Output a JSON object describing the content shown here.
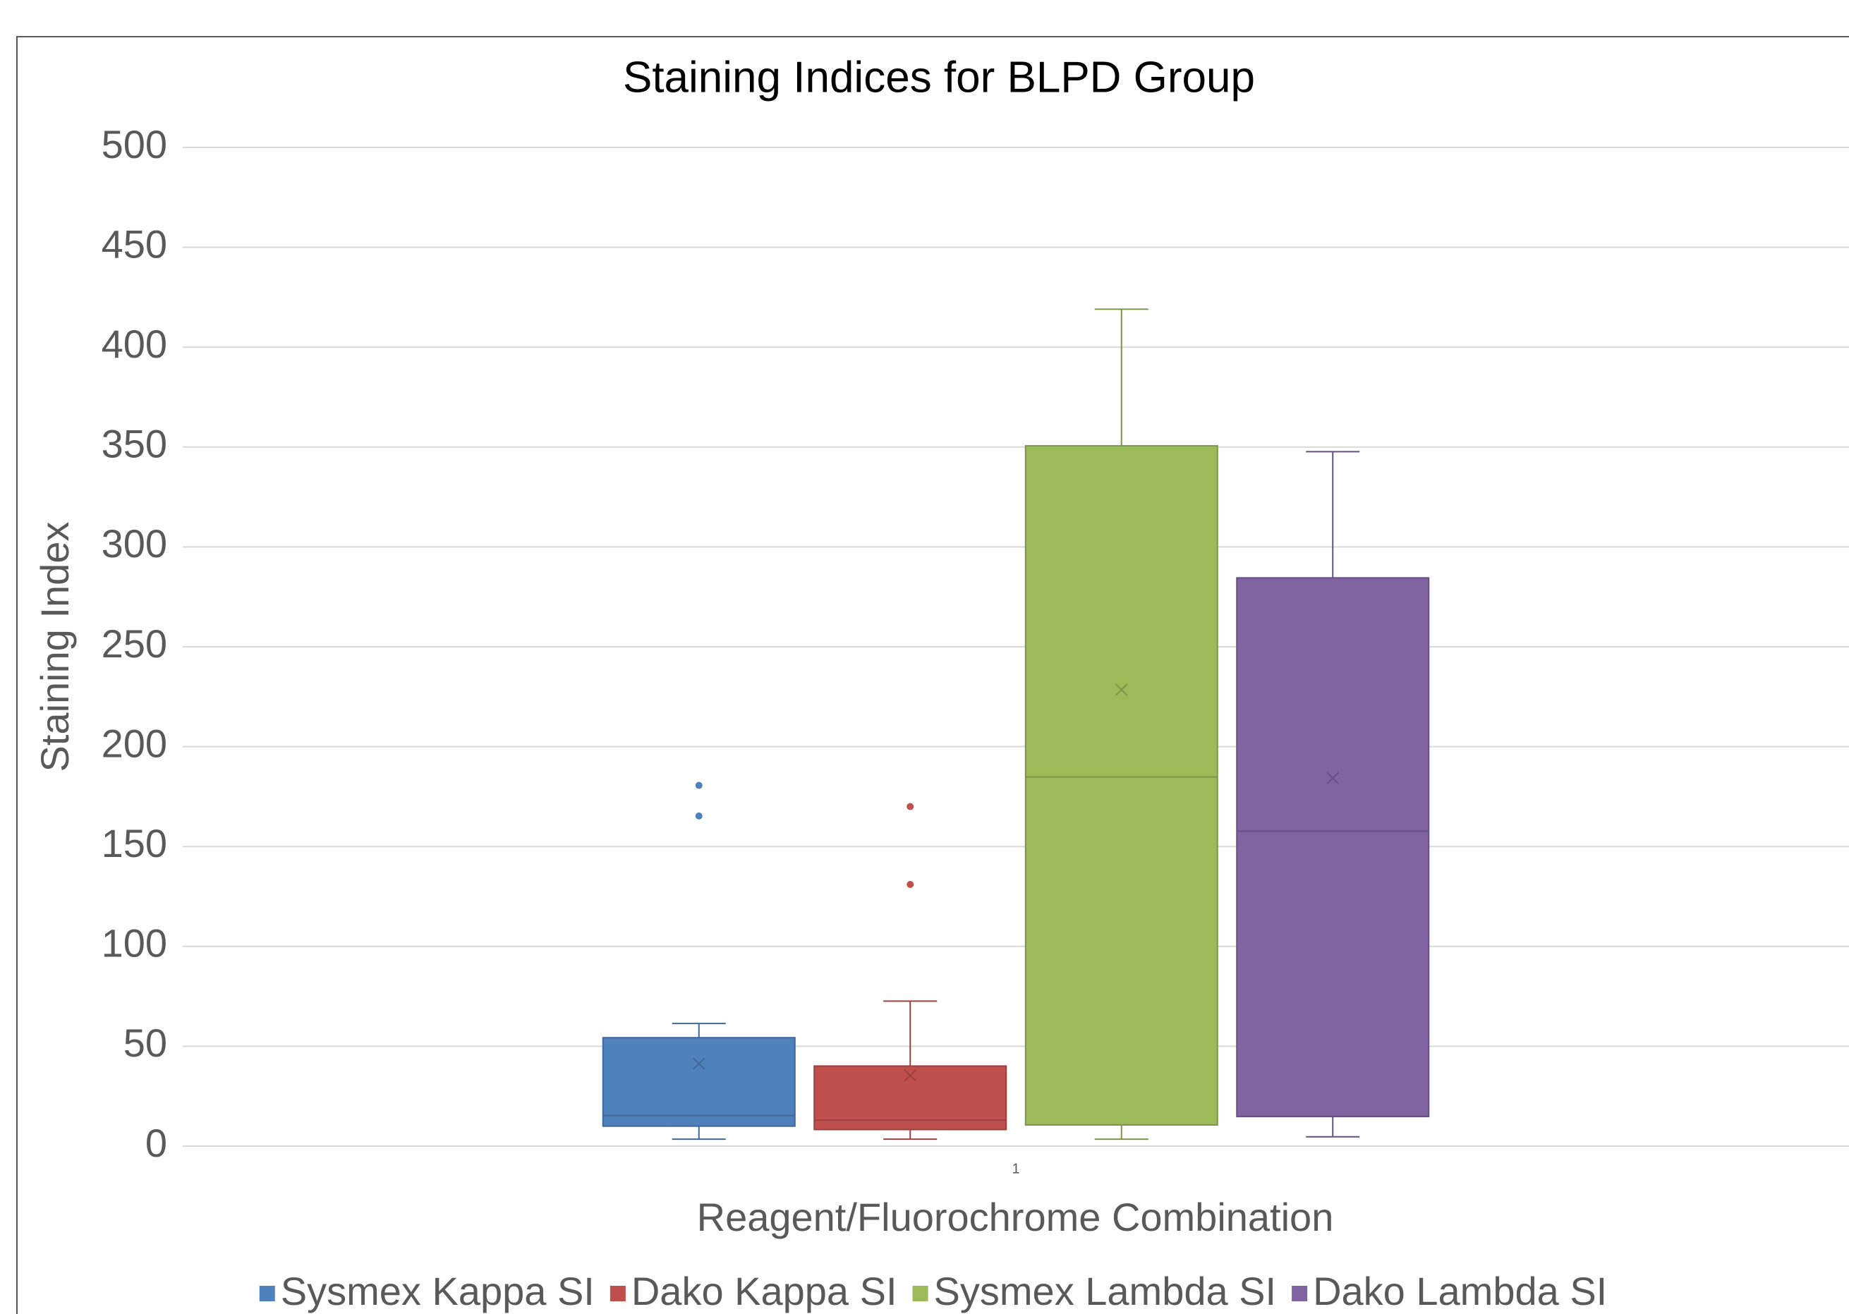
{
  "chart_data": {
    "type": "box",
    "title": "Staining Indices for BLPD Group",
    "x_label": "Reagent/Fluorochrome Combination",
    "y_label": "Staining Index",
    "categories": [
      "1"
    ],
    "ylim": [
      0,
      500
    ],
    "yticks": [
      0,
      50,
      100,
      150,
      200,
      250,
      300,
      350,
      400,
      450,
      500
    ],
    "grid": true,
    "legend": "bottom",
    "series": [
      {
        "name": "Sysmex Kappa SI",
        "color": "#4f81bd",
        "min": 3.5,
        "q1": 10,
        "median": 15.3,
        "q3": 54.3,
        "max": 61.4,
        "mean": 41.3,
        "outliers": [
          180.6,
          165.3
        ]
      },
      {
        "name": "Dako Kappa SI",
        "color": "#c0504d",
        "min": 3.5,
        "q1": 8.3,
        "median": 13,
        "q3": 40.1,
        "max": 72.6,
        "mean": 35.4,
        "outliers": [
          170,
          131
        ]
      },
      {
        "name": "Sysmex Lambda SI",
        "color": "#9bbb59",
        "min": 3.5,
        "q1": 10.6,
        "median": 184.8,
        "q3": 350.6,
        "max": 419,
        "mean": 228.5,
        "outliers": []
      },
      {
        "name": "Dako Lambda SI",
        "color": "#8064a2",
        "min": 4.7,
        "q1": 14.8,
        "median": 157.6,
        "q3": 284.5,
        "max": 347.7,
        "mean": 184.2,
        "outliers": []
      }
    ]
  }
}
